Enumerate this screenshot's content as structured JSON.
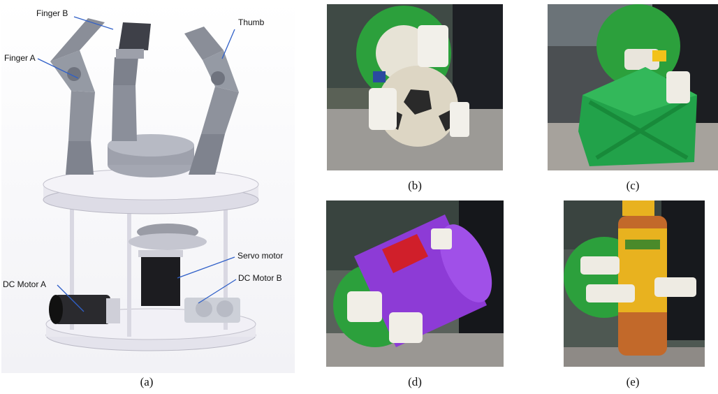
{
  "panels": {
    "a": {
      "caption": "(a)",
      "callouts": {
        "finger_b": "Finger B",
        "finger_a": "Finger A",
        "thumb": "Thumb",
        "servo_motor": "Servo motor",
        "dc_motor_b": "DC Motor B",
        "dc_motor_a": "DC Motor A"
      }
    },
    "b": {
      "caption": "(b)"
    },
    "c": {
      "caption": "(c)"
    },
    "d": {
      "caption": "(d)"
    },
    "e": {
      "caption": "(e)"
    }
  },
  "colors": {
    "cad_body": "#8b8f9a",
    "cad_plate": "#e9e8ef",
    "callout_line": "#3060c8",
    "green_base": "#2ca03c",
    "purple_object": "#8d3bd6",
    "bottle_yellow": "#e8b21f"
  }
}
